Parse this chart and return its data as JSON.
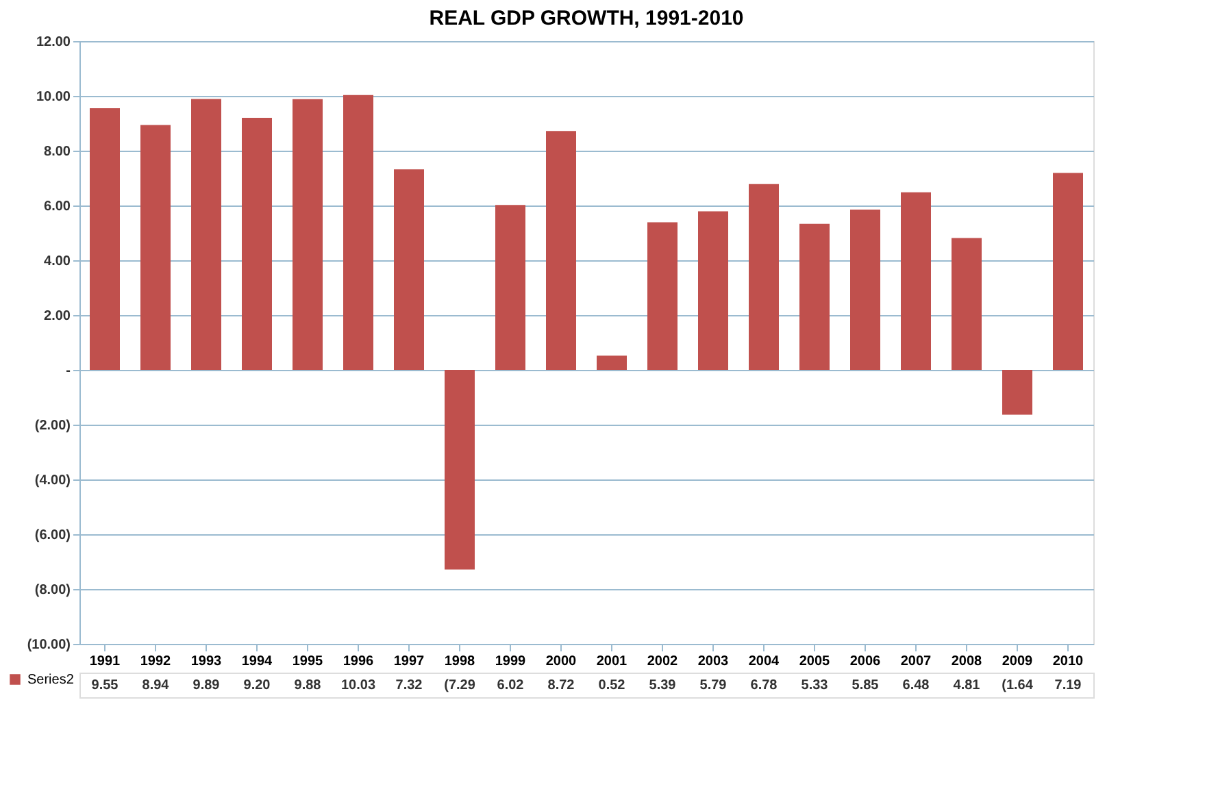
{
  "chart_data": {
    "type": "bar",
    "title": "REAL GDP GROWTH, 1991-2010",
    "categories": [
      "1991",
      "1992",
      "1993",
      "1994",
      "1995",
      "1996",
      "1997",
      "1998",
      "1999",
      "2000",
      "2001",
      "2002",
      "2003",
      "2004",
      "2005",
      "2006",
      "2007",
      "2008",
      "2009",
      "2010"
    ],
    "series": [
      {
        "name": "Series2",
        "color": "#c0504d",
        "values": [
          9.55,
          8.94,
          9.89,
          9.2,
          9.88,
          10.03,
          7.32,
          -7.29,
          6.02,
          8.72,
          0.52,
          5.39,
          5.79,
          6.78,
          5.33,
          5.85,
          6.48,
          4.81,
          -1.64,
          7.19
        ],
        "value_labels": [
          "9.55",
          "8.94",
          "9.89",
          "9.20",
          "9.88",
          "10.03",
          "7.32",
          "(7.29",
          "6.02",
          "8.72",
          "0.52",
          "5.39",
          "5.79",
          "6.78",
          "5.33",
          "5.85",
          "6.48",
          "4.81",
          "(1.64",
          "7.19"
        ]
      }
    ],
    "ylim": [
      -10,
      12
    ],
    "yticks": [
      {
        "value": -10,
        "label": "(10.00)"
      },
      {
        "value": -8,
        "label": "(8.00)"
      },
      {
        "value": -6,
        "label": "(6.00)"
      },
      {
        "value": -4,
        "label": "(4.00)"
      },
      {
        "value": -2,
        "label": "(2.00)"
      },
      {
        "value": 0,
        "label": "-"
      },
      {
        "value": 2,
        "label": "2.00"
      },
      {
        "value": 4,
        "label": "4.00"
      },
      {
        "value": 6,
        "label": "6.00"
      },
      {
        "value": 8,
        "label": "8.00"
      },
      {
        "value": 10,
        "label": "10.00"
      },
      {
        "value": 12,
        "label": "12.00"
      }
    ],
    "grid": "y",
    "legend": "bottom left"
  }
}
